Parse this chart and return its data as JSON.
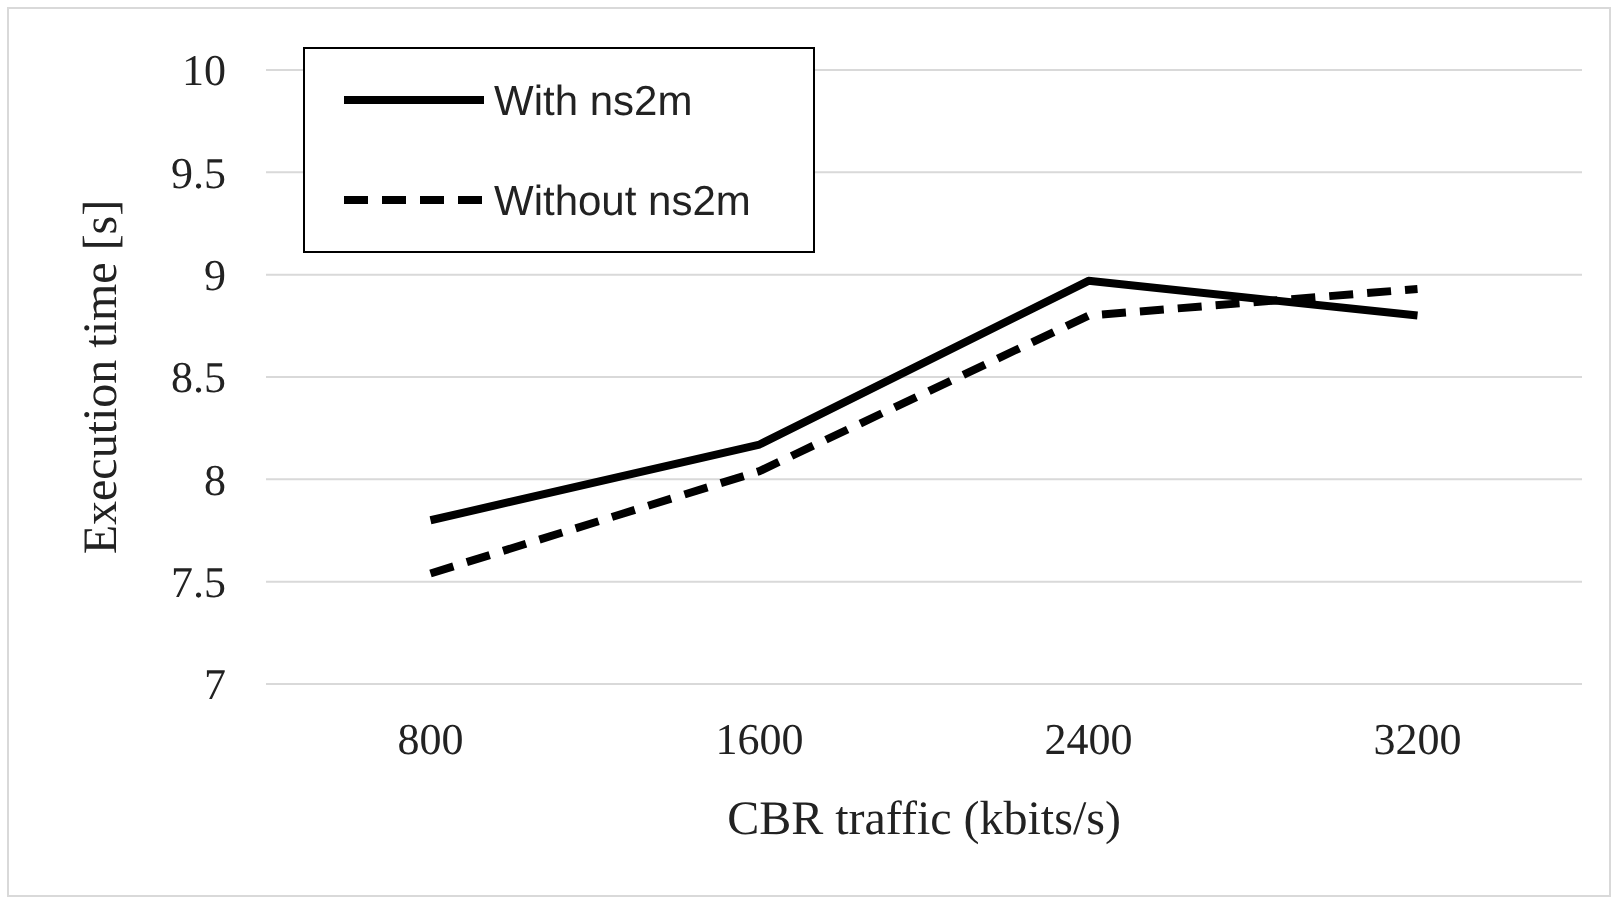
{
  "chart_data": {
    "type": "line",
    "xlabel": "CBR traffic (kbits/s)",
    "ylabel": "Execution time [s]",
    "categories": [
      "800",
      "1600",
      "2400",
      "3200"
    ],
    "series": [
      {
        "name": "With ns2m",
        "color": "#000000",
        "values": [
          7.8,
          8.17,
          8.97,
          8.8
        ],
        "line_style": "solid"
      },
      {
        "name": "Without ns2m",
        "color": "#000000",
        "values": [
          7.54,
          8.04,
          8.8,
          8.93
        ],
        "line_style": "dashed"
      }
    ],
    "ylim": [
      7,
      10
    ],
    "yticks": [
      7,
      7.5,
      8,
      8.5,
      9,
      9.5,
      10
    ],
    "grid": "y",
    "legend": "top left",
    "marker": "none"
  }
}
